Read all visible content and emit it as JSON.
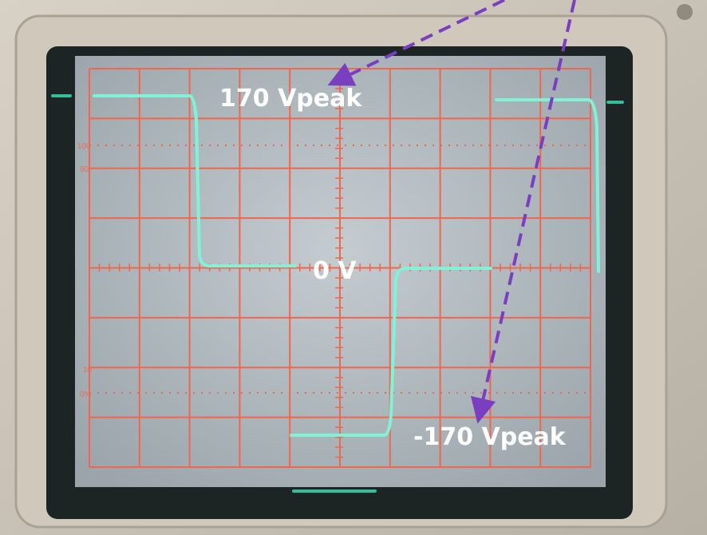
{
  "annotations": {
    "positive_peak": "170 Vpeak",
    "zero": "0 V",
    "negative_peak": "-170 Vpeak"
  },
  "graticule_labels": [
    "100",
    "90",
    "10",
    "0%"
  ]
}
